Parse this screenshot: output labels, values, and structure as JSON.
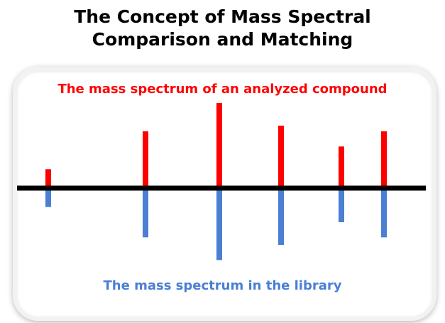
{
  "title_line1": "The Concept of Mass Spectral",
  "title_line2": "Comparison and Matching",
  "analyzed_label": "The mass spectrum of an analyzed compound",
  "library_label": "The mass spectrum in the library",
  "colors": {
    "analyzed": "#ff0000",
    "library": "#4a7fd4",
    "baseline": "#000000",
    "title": "#000000"
  },
  "chart_data": {
    "type": "bar",
    "categories": [
      "1",
      "2",
      "3",
      "4",
      "5",
      "6"
    ],
    "series": [
      {
        "values": [
          1.0,
          3.0,
          4.5,
          3.3,
          2.2,
          3.0
        ]
      },
      {
        "values": [
          1.0,
          2.6,
          3.8,
          3.0,
          1.8,
          2.6
        ]
      }
    ],
    "ylim": [
      0,
      4.5
    ],
    "grid": false
  }
}
